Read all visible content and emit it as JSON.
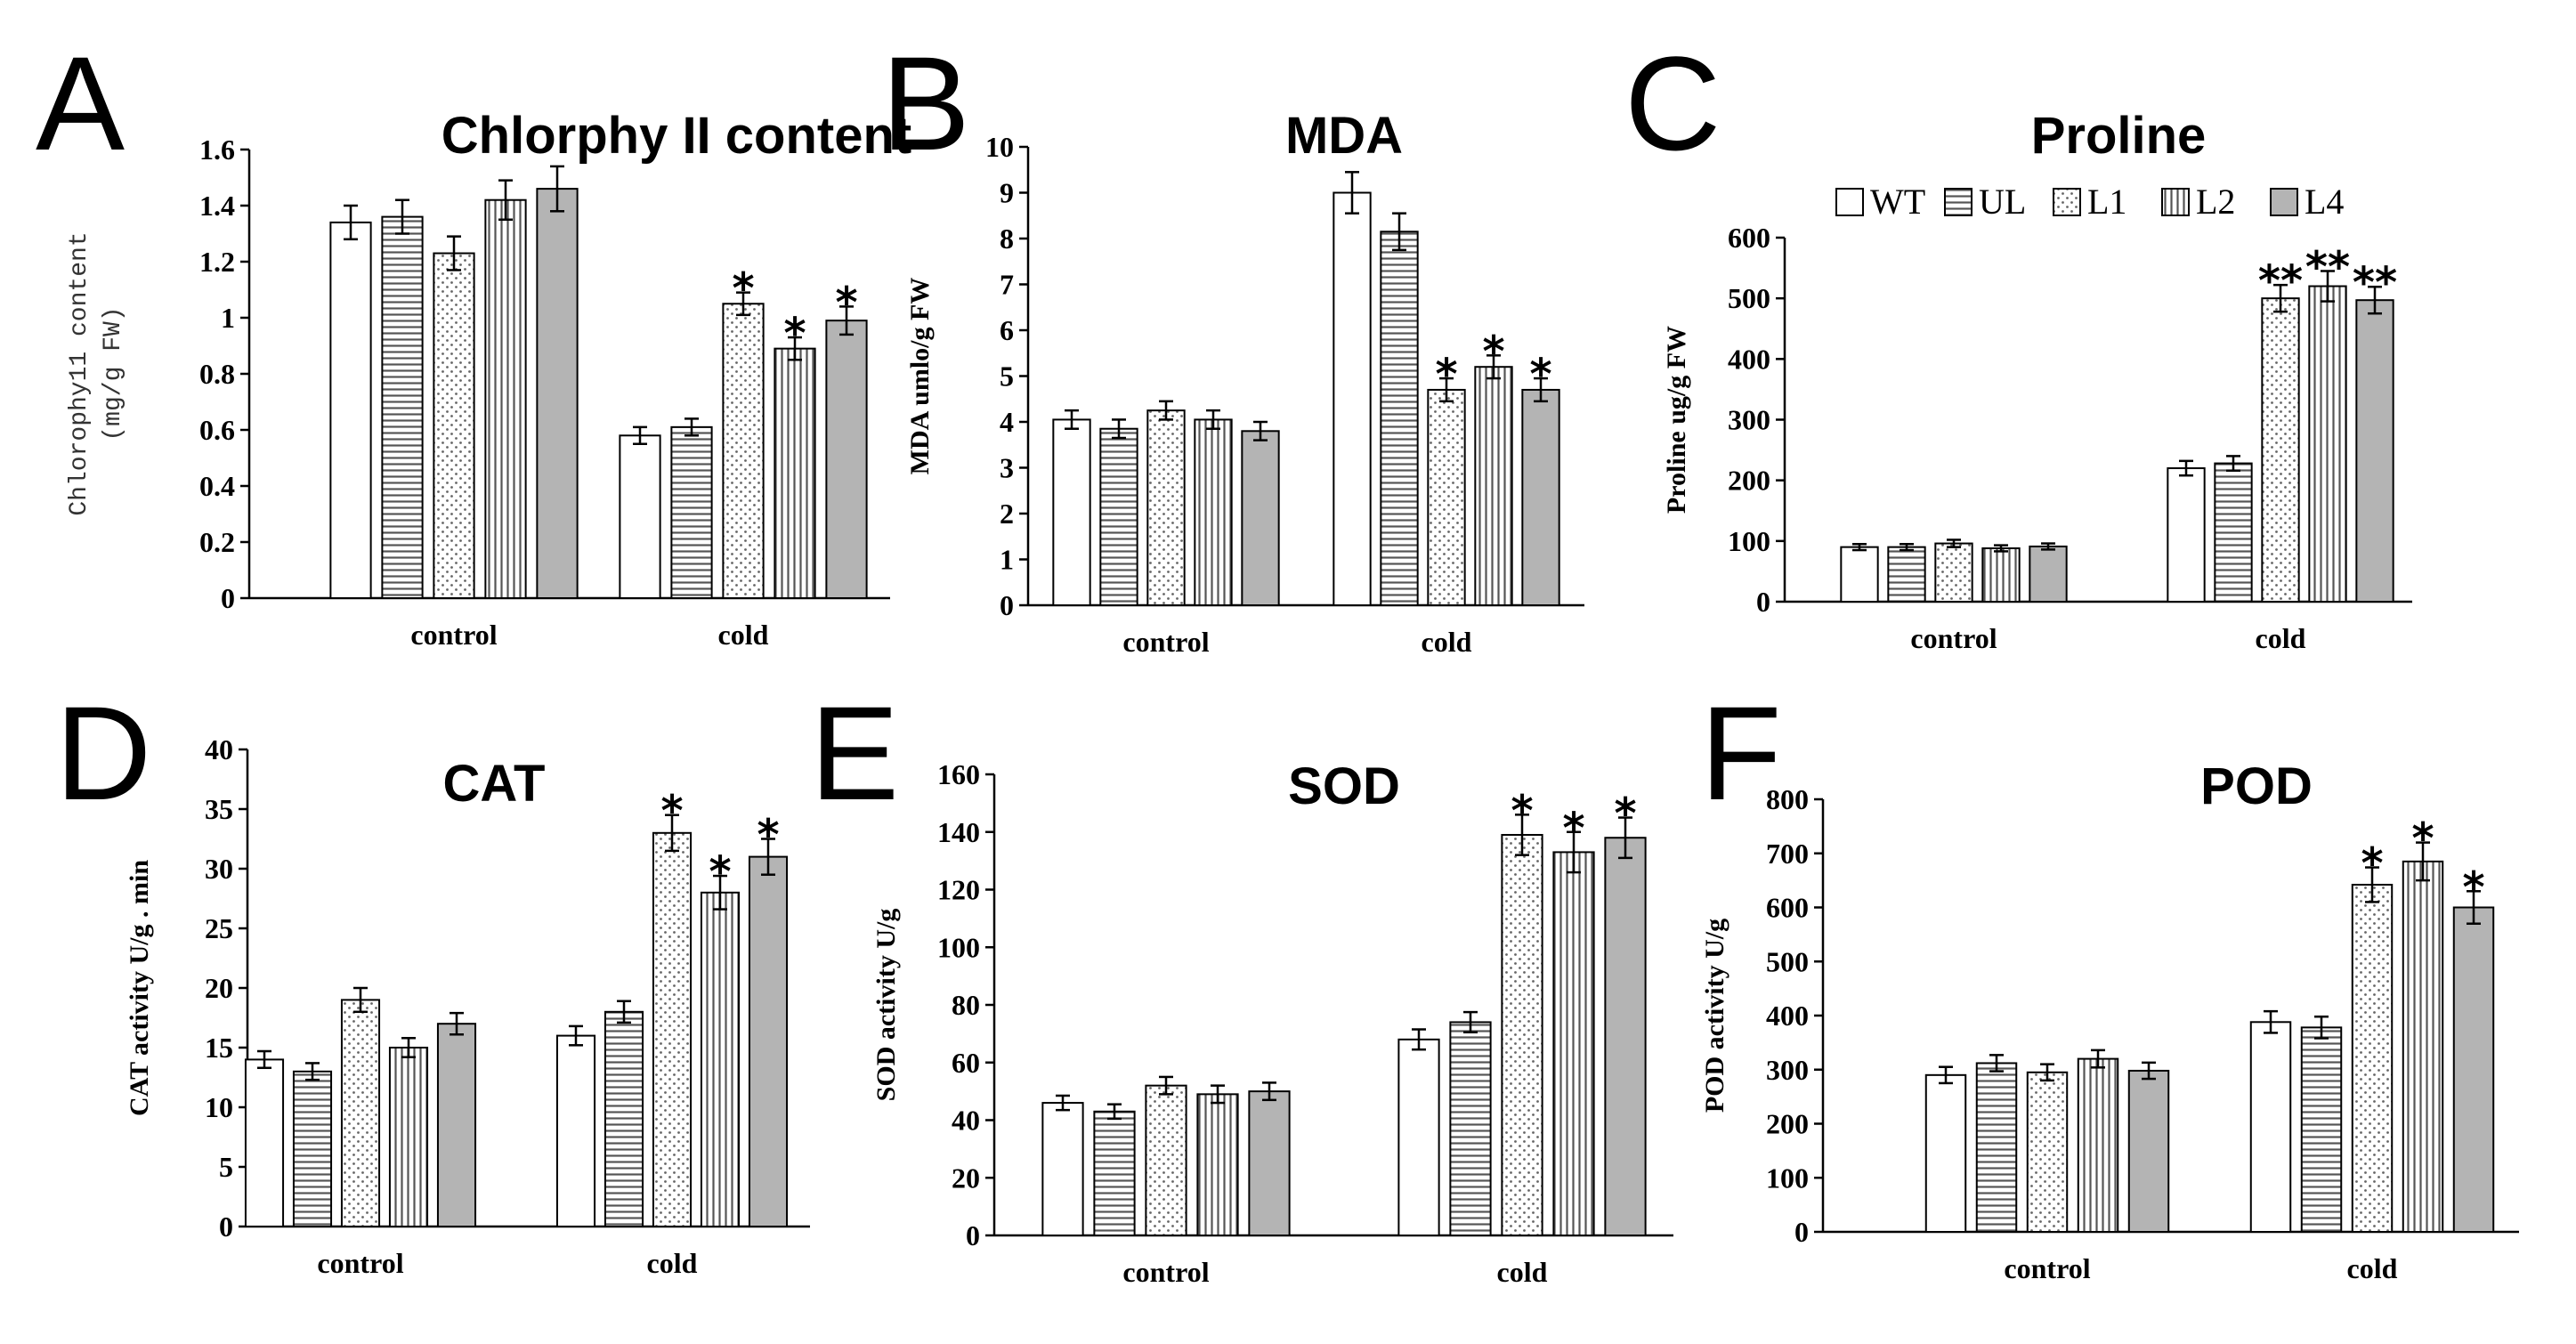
{
  "legend": [
    {
      "label": "WT",
      "pattern": "white"
    },
    {
      "label": "UL",
      "pattern": "hlines"
    },
    {
      "label": "L1",
      "pattern": "dots"
    },
    {
      "label": "L2",
      "pattern": "vlines"
    },
    {
      "label": "L4",
      "pattern": "gray"
    }
  ],
  "chart_data": [
    {
      "panel": "A",
      "type": "bar",
      "title": "Chlorphy II content",
      "ylabel_lines": [
        "Chlorophy11 content",
        "(mg/g FW)"
      ],
      "ylim": [
        0,
        1.6
      ],
      "yticks": [
        "0",
        "0.2",
        "0.4",
        "0.6",
        "0.8",
        "1",
        "1.2",
        "1.4",
        "1.6"
      ],
      "categories": [
        "control",
        "cold"
      ],
      "series": [
        {
          "name": "WT",
          "values": [
            1.34,
            0.58
          ],
          "errors": [
            0.06,
            0.03
          ],
          "stars": [
            "",
            ""
          ]
        },
        {
          "name": "UL",
          "values": [
            1.36,
            0.61
          ],
          "errors": [
            0.06,
            0.03
          ],
          "stars": [
            "",
            ""
          ]
        },
        {
          "name": "L1",
          "values": [
            1.23,
            1.05
          ],
          "errors": [
            0.06,
            0.04
          ],
          "stars": [
            "",
            "*"
          ]
        },
        {
          "name": "L2",
          "values": [
            1.42,
            0.89
          ],
          "errors": [
            0.07,
            0.04
          ],
          "stars": [
            "",
            "*"
          ]
        },
        {
          "name": "L4",
          "values": [
            1.46,
            0.99
          ],
          "errors": [
            0.08,
            0.05
          ],
          "stars": [
            "",
            "*"
          ]
        }
      ]
    },
    {
      "panel": "B",
      "type": "bar",
      "title": "MDA",
      "ylabel_lines": [
        "MDA umlo/g FW"
      ],
      "ylim": [
        0,
        10
      ],
      "yticks": [
        "0",
        "1",
        "2",
        "3",
        "4",
        "5",
        "6",
        "7",
        "8",
        "9",
        "10"
      ],
      "categories": [
        "control",
        "cold"
      ],
      "series": [
        {
          "name": "WT",
          "values": [
            4.05,
            9.0
          ],
          "errors": [
            0.2,
            0.45
          ],
          "stars": [
            "",
            ""
          ]
        },
        {
          "name": "UL",
          "values": [
            3.85,
            8.15
          ],
          "errors": [
            0.2,
            0.4
          ],
          "stars": [
            "",
            ""
          ]
        },
        {
          "name": "L1",
          "values": [
            4.25,
            4.7
          ],
          "errors": [
            0.2,
            0.25
          ],
          "stars": [
            "",
            "*"
          ]
        },
        {
          "name": "L2",
          "values": [
            4.05,
            5.2
          ],
          "errors": [
            0.2,
            0.25
          ],
          "stars": [
            "",
            "*"
          ]
        },
        {
          "name": "L4",
          "values": [
            3.8,
            4.7
          ],
          "errors": [
            0.2,
            0.25
          ],
          "stars": [
            "",
            "*"
          ]
        }
      ]
    },
    {
      "panel": "C",
      "type": "bar",
      "title": "Proline",
      "ylabel_lines": [
        "Proline ug/g FW"
      ],
      "ylim": [
        0,
        600
      ],
      "yticks": [
        "0",
        "100",
        "200",
        "300",
        "400",
        "500",
        "600"
      ],
      "categories": [
        "control",
        "cold"
      ],
      "series": [
        {
          "name": "WT",
          "values": [
            90,
            220
          ],
          "errors": [
            5,
            12
          ],
          "stars": [
            "",
            ""
          ]
        },
        {
          "name": "UL",
          "values": [
            90,
            228
          ],
          "errors": [
            5,
            12
          ],
          "stars": [
            "",
            ""
          ]
        },
        {
          "name": "L1",
          "values": [
            96,
            500
          ],
          "errors": [
            6,
            22
          ],
          "stars": [
            "",
            "**"
          ]
        },
        {
          "name": "L2",
          "values": [
            88,
            520
          ],
          "errors": [
            5,
            25
          ],
          "stars": [
            "",
            "**"
          ]
        },
        {
          "name": "L4",
          "values": [
            91,
            497
          ],
          "errors": [
            5,
            22
          ],
          "stars": [
            "",
            "**"
          ]
        }
      ]
    },
    {
      "panel": "D",
      "type": "bar",
      "title": "CAT",
      "ylabel_lines": [
        "CAT activity U/g . min"
      ],
      "ylim": [
        0,
        40
      ],
      "yticks": [
        "0",
        "5",
        "10",
        "15",
        "20",
        "25",
        "30",
        "35",
        "40"
      ],
      "categories": [
        "control",
        "cold"
      ],
      "series": [
        {
          "name": "WT",
          "values": [
            14,
            16
          ],
          "errors": [
            0.7,
            0.8
          ],
          "stars": [
            "",
            ""
          ]
        },
        {
          "name": "UL",
          "values": [
            13,
            18
          ],
          "errors": [
            0.7,
            0.9
          ],
          "stars": [
            "",
            ""
          ]
        },
        {
          "name": "L1",
          "values": [
            19,
            33
          ],
          "errors": [
            1.0,
            1.5
          ],
          "stars": [
            "",
            "*"
          ]
        },
        {
          "name": "L2",
          "values": [
            15,
            28
          ],
          "errors": [
            0.8,
            1.4
          ],
          "stars": [
            "",
            "*"
          ]
        },
        {
          "name": "L4",
          "values": [
            17,
            31
          ],
          "errors": [
            0.9,
            1.5
          ],
          "stars": [
            "",
            "*"
          ]
        }
      ]
    },
    {
      "panel": "E",
      "type": "bar",
      "title": "SOD",
      "ylabel_lines": [
        "SOD activity U/g"
      ],
      "ylim": [
        0,
        160
      ],
      "yticks": [
        "0",
        "20",
        "40",
        "60",
        "80",
        "100",
        "120",
        "140",
        "160"
      ],
      "categories": [
        "control",
        "cold"
      ],
      "series": [
        {
          "name": "WT",
          "values": [
            46,
            68
          ],
          "errors": [
            2.5,
            3.5
          ],
          "stars": [
            "",
            ""
          ]
        },
        {
          "name": "UL",
          "values": [
            43,
            74
          ],
          "errors": [
            2.5,
            3.5
          ],
          "stars": [
            "",
            ""
          ]
        },
        {
          "name": "L1",
          "values": [
            52,
            139
          ],
          "errors": [
            3,
            7
          ],
          "stars": [
            "",
            "*"
          ]
        },
        {
          "name": "L2",
          "values": [
            49,
            133
          ],
          "errors": [
            3,
            7
          ],
          "stars": [
            "",
            "*"
          ]
        },
        {
          "name": "L4",
          "values": [
            50,
            138
          ],
          "errors": [
            3,
            7
          ],
          "stars": [
            "",
            "*"
          ]
        }
      ]
    },
    {
      "panel": "F",
      "type": "bar",
      "title": "POD",
      "ylabel_lines": [
        "POD activity U/g"
      ],
      "ylim": [
        0,
        800
      ],
      "yticks": [
        "0",
        "100",
        "200",
        "300",
        "400",
        "500",
        "600",
        "700",
        "800"
      ],
      "categories": [
        "control",
        "cold"
      ],
      "series": [
        {
          "name": "WT",
          "values": [
            290,
            388
          ],
          "errors": [
            15,
            20
          ],
          "stars": [
            "",
            ""
          ]
        },
        {
          "name": "UL",
          "values": [
            312,
            378
          ],
          "errors": [
            15,
            20
          ],
          "stars": [
            "",
            ""
          ]
        },
        {
          "name": "L1",
          "values": [
            295,
            642
          ],
          "errors": [
            15,
            32
          ],
          "stars": [
            "",
            "*"
          ]
        },
        {
          "name": "L2",
          "values": [
            320,
            685
          ],
          "errors": [
            16,
            35
          ],
          "stars": [
            "",
            "*"
          ]
        },
        {
          "name": "L4",
          "values": [
            298,
            600
          ],
          "errors": [
            15,
            30
          ],
          "stars": [
            "",
            "*"
          ]
        }
      ]
    }
  ]
}
